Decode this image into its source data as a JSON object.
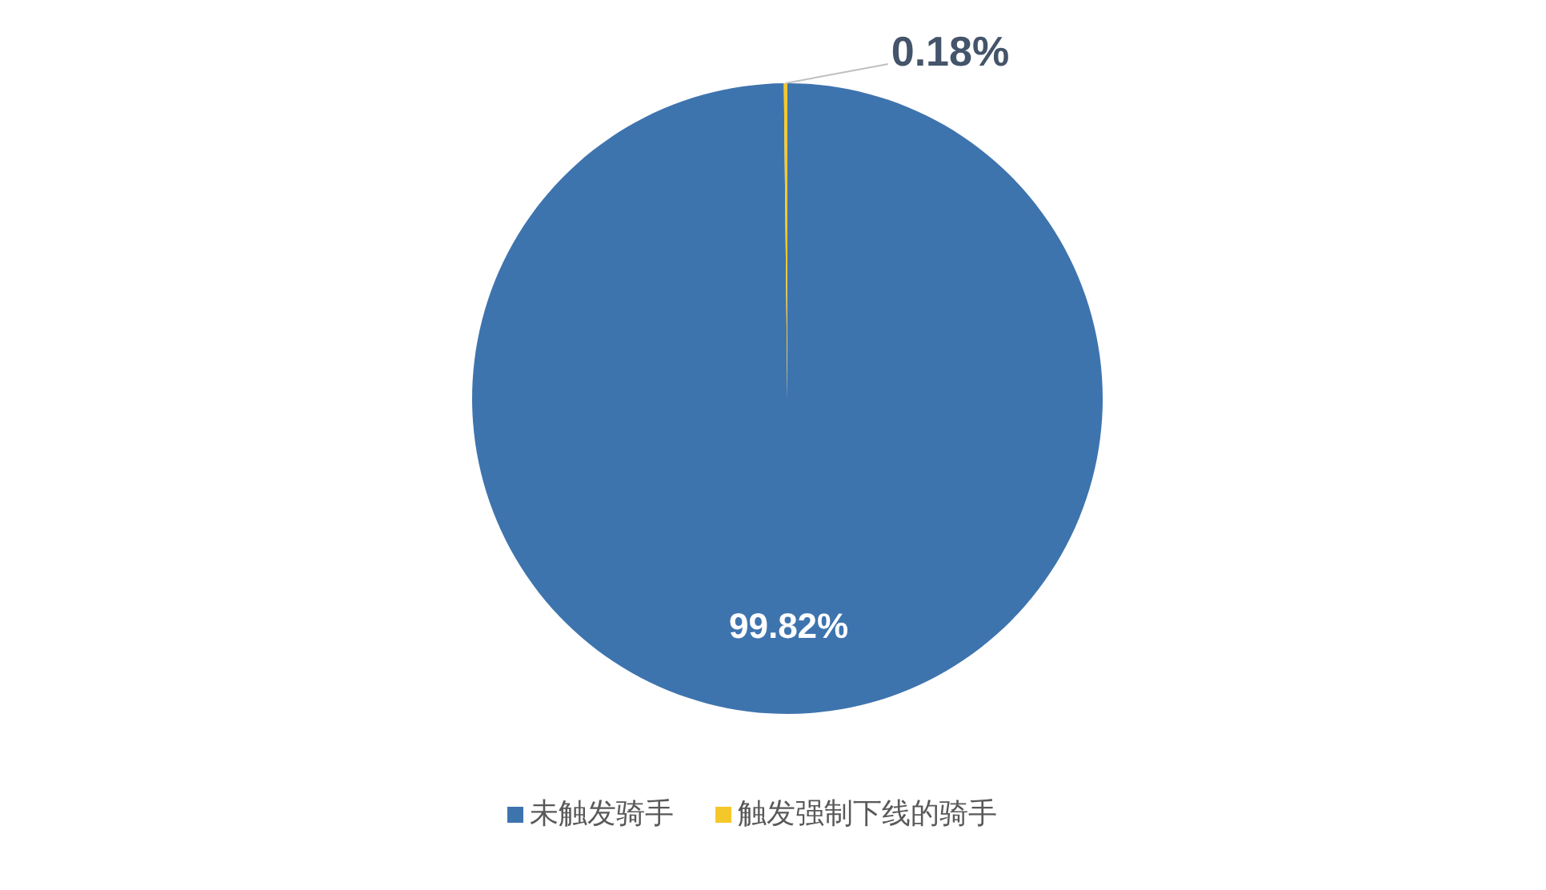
{
  "chart_data": {
    "type": "pie",
    "categories": [
      "未触发骑手",
      "触发强制下线的骑手"
    ],
    "values": [
      99.82,
      0.18
    ],
    "colors": [
      "#3e74ae",
      "#f5c82a"
    ],
    "value_labels": [
      "99.82%",
      "0.18%"
    ],
    "legend": "bottom"
  }
}
